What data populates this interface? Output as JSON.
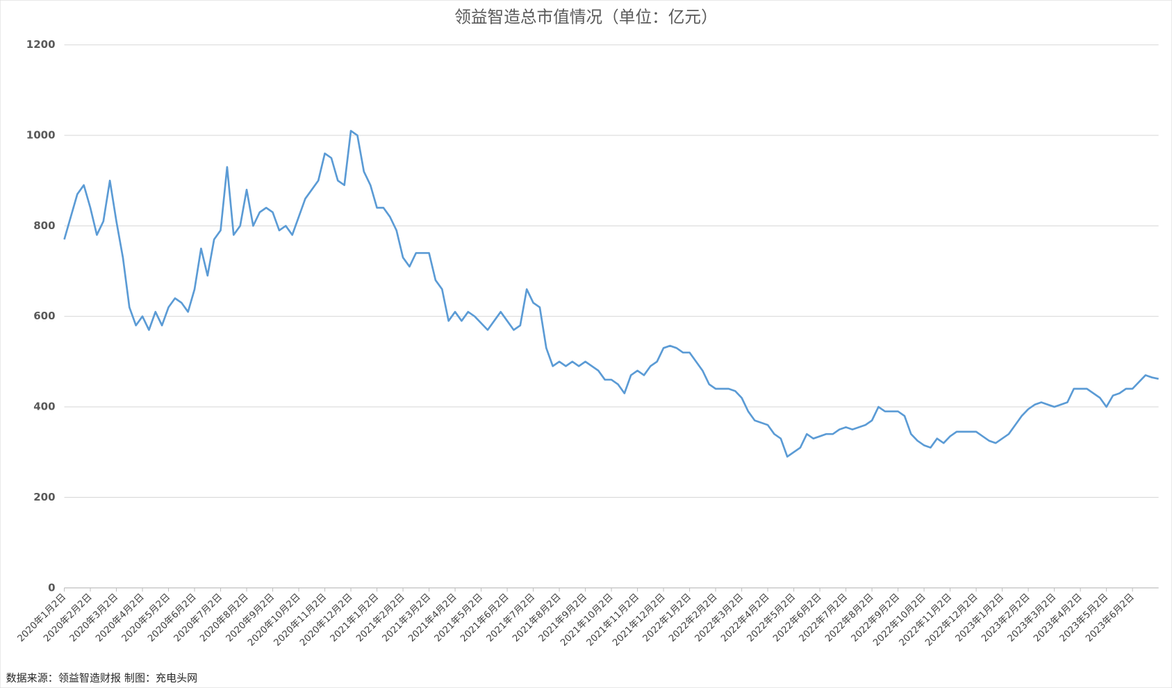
{
  "chart_data": {
    "type": "line",
    "title": "领益智造总市值情况（单位：亿元）",
    "source": "数据来源：领益智造财报 制图：充电头网",
    "categories": [
      "2020年1月2日",
      null,
      null,
      null,
      "2020年2月2日",
      null,
      null,
      null,
      "2020年3月2日",
      null,
      null,
      null,
      "2020年4月2日",
      null,
      null,
      null,
      "2020年5月2日",
      null,
      null,
      null,
      "2020年6月2日",
      null,
      null,
      null,
      "2020年7月2日",
      null,
      null,
      null,
      "2020年8月2日",
      null,
      null,
      null,
      "2020年9月2日",
      null,
      null,
      null,
      "2020年10月2日",
      null,
      null,
      null,
      "2020年11月2日",
      null,
      null,
      null,
      "2020年12月2日",
      null,
      null,
      null,
      "2021年1月2日",
      null,
      null,
      null,
      "2021年2月2日",
      null,
      null,
      null,
      "2021年3月2日",
      null,
      null,
      null,
      "2021年4月2日",
      null,
      null,
      null,
      "2021年5月2日",
      null,
      null,
      null,
      "2021年6月2日",
      null,
      null,
      null,
      "2021年7月2日",
      null,
      null,
      null,
      "2021年8月2日",
      null,
      null,
      null,
      "2021年9月2日",
      null,
      null,
      null,
      "2021年10月2日",
      null,
      null,
      null,
      "2021年11月2日",
      null,
      null,
      null,
      "2021年12月2日",
      null,
      null,
      null,
      "2022年1月2日",
      null,
      null,
      null,
      "2022年2月2日",
      null,
      null,
      null,
      "2022年3月2日",
      null,
      null,
      null,
      "2022年4月2日",
      null,
      null,
      null,
      "2022年5月2日",
      null,
      null,
      null,
      "2022年6月2日",
      null,
      null,
      null,
      "2022年7月2日",
      null,
      null,
      null,
      "2022年8月2日",
      null,
      null,
      null,
      "2022年9月2日",
      null,
      null,
      null,
      "2022年10月2日",
      null,
      null,
      null,
      "2022年11月2日",
      null,
      null,
      null,
      "2022年12月2日",
      null,
      null,
      null,
      "2023年1月2日",
      null,
      null,
      null,
      "2023年2月2日",
      null,
      null,
      null,
      "2023年3月2日",
      null,
      null,
      null,
      "2023年4月2日",
      null,
      null,
      null,
      "2023年5月2日",
      null,
      null,
      null,
      "2023年6月2日",
      null,
      null,
      null,
      null
    ],
    "values": [
      770,
      820,
      870,
      890,
      840,
      780,
      810,
      900,
      810,
      730,
      620,
      580,
      600,
      570,
      610,
      580,
      620,
      640,
      630,
      610,
      660,
      750,
      690,
      770,
      790,
      930,
      780,
      800,
      880,
      800,
      830,
      840,
      830,
      790,
      800,
      780,
      820,
      860,
      880,
      900,
      960,
      950,
      900,
      890,
      1010,
      1000,
      920,
      890,
      840,
      840,
      820,
      790,
      730,
      710,
      740,
      740,
      740,
      680,
      660,
      590,
      610,
      590,
      610,
      600,
      585,
      570,
      590,
      610,
      590,
      570,
      580,
      660,
      630,
      620,
      530,
      490,
      500,
      490,
      500,
      490,
      500,
      490,
      480,
      460,
      460,
      450,
      430,
      470,
      480,
      470,
      490,
      500,
      530,
      535,
      530,
      520,
      520,
      500,
      480,
      450,
      440,
      440,
      440,
      435,
      420,
      390,
      370,
      365,
      360,
      340,
      330,
      290,
      300,
      310,
      340,
      330,
      335,
      340,
      340,
      350,
      355,
      350,
      355,
      360,
      370,
      400,
      390,
      390,
      390,
      380,
      340,
      325,
      315,
      310,
      330,
      320,
      335,
      345,
      345,
      345,
      345,
      335,
      325,
      320,
      330,
      340,
      360,
      380,
      395,
      405,
      410,
      405,
      400,
      405,
      410,
      440,
      440,
      440,
      430,
      420,
      400,
      425,
      430,
      440,
      440,
      455,
      470,
      465,
      462
    ],
    "color": "#5b9bd5",
    "ylim": [
      0,
      1200
    ],
    "yticks": [
      0,
      200,
      400,
      600,
      800,
      1000,
      1200
    ],
    "grid": true
  }
}
